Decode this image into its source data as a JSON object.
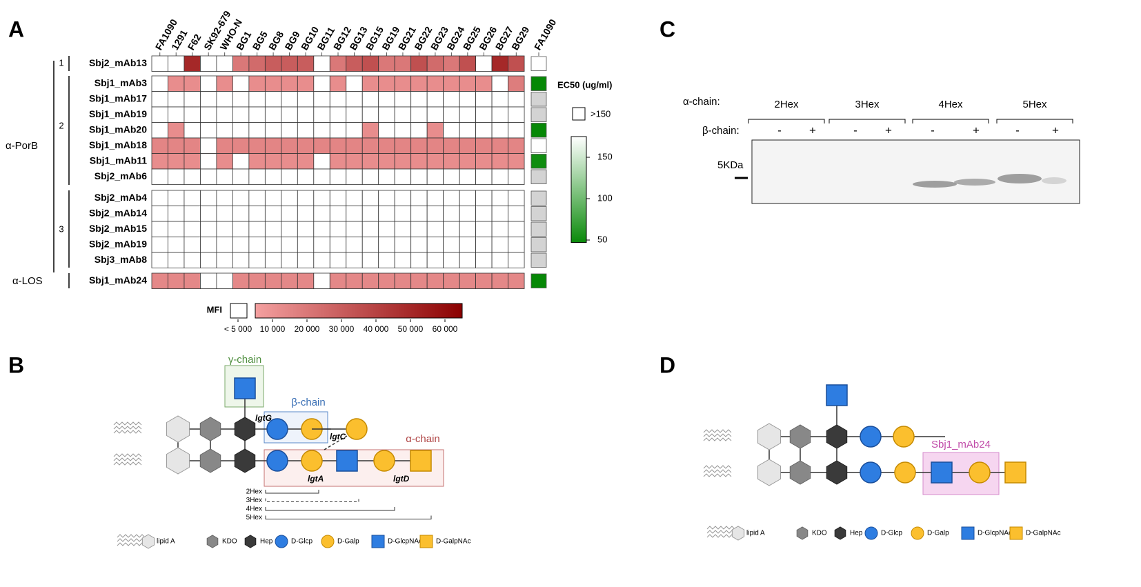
{
  "panels": {
    "A": "A",
    "B": "B",
    "C": "C",
    "D": "D"
  },
  "heatmap": {
    "columns": [
      "FA1090",
      "1291",
      "F62",
      "SK92-679",
      "WHO-N",
      "BG1",
      "BG5",
      "BG8",
      "BG9",
      "BG10",
      "BG11",
      "BG12",
      "BG13",
      "BG15",
      "BG19",
      "BG21",
      "BG22",
      "BG23",
      "BG24",
      "BG25",
      "BG26",
      "BG27",
      "BG29"
    ],
    "ec50_column": "FA1090",
    "target_labels": [
      "α-PorB",
      "α-LOS"
    ],
    "groups": [
      "1",
      "2",
      "3"
    ],
    "rows": [
      {
        "name": "Sbj2_mAb13",
        "values": [
          0,
          0,
          50000,
          0,
          0,
          20000,
          25000,
          30000,
          30000,
          30000,
          0,
          20000,
          30000,
          35000,
          20000,
          20000,
          35000,
          25000,
          20000,
          35000,
          0,
          50000,
          35000
        ]
      },
      {
        "name": "Sbj1_mAb3",
        "values": [
          0,
          12000,
          12000,
          0,
          12000,
          0,
          12000,
          12000,
          12000,
          12000,
          0,
          12000,
          0,
          12000,
          12000,
          12000,
          12000,
          12000,
          12000,
          12000,
          12000,
          0,
          18000
        ]
      },
      {
        "name": "Sbj1_mAb17",
        "values": [
          0,
          0,
          0,
          0,
          0,
          0,
          0,
          0,
          0,
          0,
          0,
          0,
          0,
          0,
          0,
          0,
          0,
          0,
          0,
          0,
          0,
          0,
          0
        ]
      },
      {
        "name": "Sbj1_mAb19",
        "values": [
          0,
          0,
          0,
          0,
          0,
          0,
          0,
          0,
          0,
          0,
          0,
          0,
          0,
          0,
          0,
          0,
          0,
          0,
          0,
          0,
          0,
          0,
          0
        ]
      },
      {
        "name": "Sbj1_mAb20",
        "values": [
          0,
          12000,
          0,
          0,
          0,
          0,
          0,
          0,
          0,
          0,
          0,
          0,
          0,
          12000,
          0,
          0,
          0,
          12000,
          0,
          0,
          0,
          0,
          0
        ]
      },
      {
        "name": "Sbj1_mAb18",
        "values": [
          15000,
          15000,
          15000,
          0,
          15000,
          15000,
          15000,
          15000,
          15000,
          15000,
          15000,
          15000,
          15000,
          15000,
          15000,
          15000,
          15000,
          15000,
          15000,
          15000,
          15000,
          15000,
          15000
        ]
      },
      {
        "name": "Sbj1_mAb11",
        "values": [
          12000,
          12000,
          12000,
          0,
          12000,
          0,
          12000,
          12000,
          12000,
          12000,
          0,
          12000,
          12000,
          12000,
          12000,
          12000,
          12000,
          12000,
          12000,
          12000,
          12000,
          12000,
          12000
        ]
      },
      {
        "name": "Sbj2_mAb6",
        "values": [
          0,
          0,
          0,
          0,
          0,
          0,
          0,
          0,
          0,
          0,
          0,
          0,
          0,
          0,
          0,
          0,
          0,
          0,
          0,
          0,
          0,
          0,
          0
        ]
      },
      {
        "name": "Sbj2_mAb4",
        "values": [
          0,
          0,
          0,
          0,
          0,
          0,
          0,
          0,
          0,
          0,
          0,
          0,
          0,
          0,
          0,
          0,
          0,
          0,
          0,
          0,
          0,
          0,
          0
        ]
      },
      {
        "name": "Sbj2_mAb14",
        "values": [
          0,
          0,
          0,
          0,
          0,
          0,
          0,
          0,
          0,
          0,
          0,
          0,
          0,
          0,
          0,
          0,
          0,
          0,
          0,
          0,
          0,
          0,
          0
        ]
      },
      {
        "name": "Sbj2_mAb15",
        "values": [
          0,
          0,
          0,
          0,
          0,
          0,
          0,
          0,
          0,
          0,
          0,
          0,
          0,
          0,
          0,
          0,
          0,
          0,
          0,
          0,
          0,
          0,
          0
        ]
      },
      {
        "name": "Sbj2_mAb19",
        "values": [
          0,
          0,
          0,
          0,
          0,
          0,
          0,
          0,
          0,
          0,
          0,
          0,
          0,
          0,
          0,
          0,
          0,
          0,
          0,
          0,
          0,
          0,
          0
        ]
      },
      {
        "name": "Sbj3_mAb8",
        "values": [
          0,
          0,
          0,
          0,
          0,
          0,
          0,
          0,
          0,
          0,
          0,
          0,
          0,
          0,
          0,
          0,
          0,
          0,
          0,
          0,
          0,
          0,
          0
        ]
      },
      {
        "name": "Sbj1_mAb24",
        "values": [
          14000,
          14000,
          14000,
          0,
          0,
          14000,
          14000,
          14000,
          14000,
          14000,
          0,
          14000,
          14000,
          14000,
          14000,
          14000,
          14000,
          14000,
          14000,
          14000,
          14000,
          14000,
          14000
        ]
      }
    ],
    "ec50": [
      ">150",
      45,
      null,
      null,
      45,
      ">150",
      50,
      null,
      null,
      null,
      null,
      null,
      null,
      45
    ],
    "mfi_legend": {
      "title": "MFI",
      "lim": [
        5000,
        65000
      ],
      "low_color": "#f4a0a0",
      "high_color": "#8b0000",
      "ticks": [
        {
          "value": 0,
          "label": "< 5 000"
        },
        {
          "value": 10000,
          "label": "10 000"
        },
        {
          "value": 20000,
          "label": "20 000"
        },
        {
          "value": 30000,
          "label": "30 000"
        },
        {
          "value": 40000,
          "label": "40 000"
        },
        {
          "value": 50000,
          "label": "50 000"
        },
        {
          "value": 60000,
          "label": "60 000"
        }
      ]
    },
    "ec50_legend": {
      "title": "EC50 (ug/ml)",
      "above_label": ">150",
      "lim": [
        47,
        175
      ],
      "low_color": "#0a8a0a",
      "high_color": "#ffffff",
      "ticks": [
        150,
        100,
        50
      ]
    }
  },
  "blot": {
    "alpha_label": "α-chain:",
    "beta_label": "β-chain:",
    "lanes": [
      "2Hex",
      "3Hex",
      "4Hex",
      "5Hex"
    ],
    "beta": [
      "-",
      "+",
      "-",
      "+",
      "-",
      "+",
      "-",
      "+"
    ],
    "marker": "5KDa"
  },
  "glycan_B": {
    "chains": [
      "γ-chain",
      "β-chain",
      "α-chain"
    ],
    "enzymes": [
      "lgtG",
      "lgtC",
      "lgtA",
      "lgtD"
    ],
    "lengths": [
      "2Hex",
      "3Hex",
      "4Hex",
      "5Hex"
    ]
  },
  "glycan_D": {
    "epitope": "Sbj1_mAb24"
  },
  "legend": [
    "lipid A",
    "KDO",
    "Hep",
    "D-Glcp",
    "D-Galp",
    "D-GlcpNAc",
    "D-GalpNAc"
  ]
}
